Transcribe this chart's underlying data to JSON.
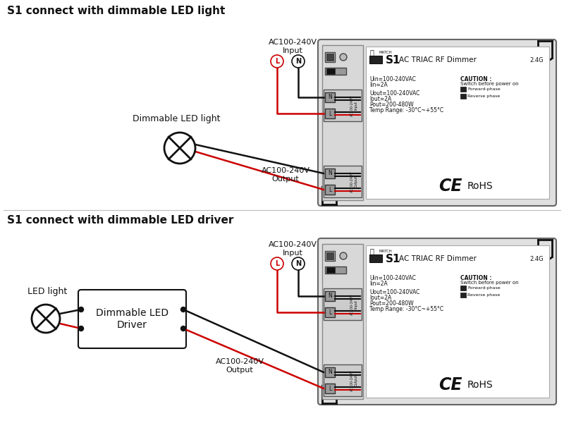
{
  "title1": "S1 connect with dimmable LED light",
  "title2": "S1 connect with dimmable LED driver",
  "bg_color": "#ffffff",
  "line_color_black": "#111111",
  "line_color_red": "#cc0000",
  "specs_line1": "Uin=100-240VAC",
  "specs_line2": "Iin=2A",
  "specs_line3": "Uout=100-240VAC",
  "specs_line4": "Iout=2A",
  "specs_line5": "Pout=200-480W",
  "specs_line6": "Temp Range: -30°C~+55°C",
  "caution_line1": "CAUTION :",
  "caution_line2": "Switch before power on",
  "caution_line3": "Forward-phase",
  "caution_line4": "Reverse phase",
  "rohs": "RoHS",
  "ac_input": "AC100-240V\nInput",
  "ac_output": "AC100-240V\nOutput",
  "label_L": "L",
  "label_N": "N",
  "dimmable_led_light": "Dimmable LED light",
  "led_light_label": "LED light",
  "dimmable_led_driver": "Dimmable LED\nDriver",
  "switch_label": "MATCH",
  "freq_label": "2.4G",
  "s1_label": "S1",
  "model_label": "AC TRIAC RF Dimmer"
}
